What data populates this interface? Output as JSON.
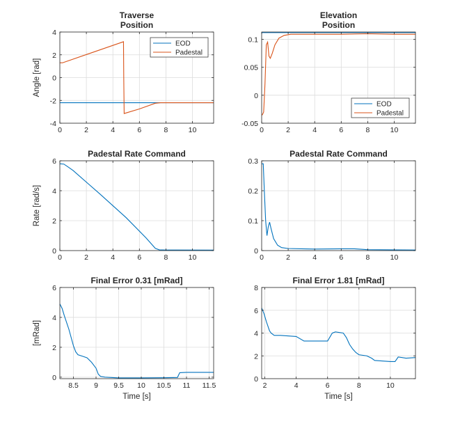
{
  "colors": {
    "eod": "#0072BD",
    "padestal": "#D95319"
  },
  "chart_data": [
    {
      "type": "line",
      "title": [
        "Traverse",
        "Position"
      ],
      "xlabel": "",
      "ylabel": "Angle [rad]",
      "xlim": [
        0,
        11.6
      ],
      "ylim": [
        -4,
        4
      ],
      "xticks": [
        0,
        2,
        4,
        6,
        8,
        10
      ],
      "xtick_labels": [
        "0",
        "2",
        "4",
        "6",
        "8",
        "10"
      ],
      "yticks": [
        -4,
        -2,
        0,
        2,
        4
      ],
      "ytick_labels": [
        "-4",
        "-2",
        "0",
        "2",
        "4"
      ],
      "grid": true,
      "legend": "top-right",
      "series": [
        {
          "name": "EOD",
          "color": "#0072BD",
          "x": [
            0,
            11.6
          ],
          "y": [
            -2.2,
            -2.2
          ]
        },
        {
          "name": "Padestal",
          "color": "#D95319",
          "x": [
            0,
            0.2,
            4.8,
            4.82,
            4.85,
            6.0,
            7.2,
            7.6,
            11.6
          ],
          "y": [
            1.3,
            1.3,
            3.15,
            0,
            -3.15,
            -2.75,
            -2.25,
            -2.2,
            -2.2
          ]
        }
      ]
    },
    {
      "type": "line",
      "title": [
        "Elevation",
        "Position"
      ],
      "xlabel": "",
      "ylabel": "",
      "xlim": [
        0,
        11.6
      ],
      "ylim": [
        -0.05,
        0.113
      ],
      "xticks": [
        0,
        2,
        4,
        6,
        8,
        10
      ],
      "xtick_labels": [
        "0",
        "2",
        "4",
        "6",
        "8",
        "10"
      ],
      "yticks": [
        -0.05,
        0,
        0.05,
        0.1
      ],
      "ytick_labels": [
        "-0.05",
        "0",
        "0.05",
        "0.1"
      ],
      "grid": true,
      "legend": "bottom-right",
      "series": [
        {
          "name": "EOD",
          "color": "#0072BD",
          "x": [
            0,
            11.6
          ],
          "y": [
            0.112,
            0.112
          ]
        },
        {
          "name": "Padestal",
          "color": "#D95319",
          "x": [
            0,
            0.05,
            0.15,
            0.25,
            0.35,
            0.45,
            0.55,
            0.65,
            0.8,
            1.0,
            1.3,
            1.7,
            2.2,
            3.0,
            4.0,
            6.0,
            8.0,
            10.0,
            11.6
          ],
          "y": [
            -0.035,
            -0.035,
            -0.03,
            0.02,
            0.09,
            0.095,
            0.07,
            0.066,
            0.075,
            0.09,
            0.102,
            0.107,
            0.109,
            0.109,
            0.109,
            0.109,
            0.11,
            0.109,
            0.109
          ]
        }
      ]
    },
    {
      "type": "line",
      "title": [
        "Padestal Rate Command"
      ],
      "xlabel": "",
      "ylabel": "Rate [rad/s]",
      "xlim": [
        0,
        11.6
      ],
      "ylim": [
        0,
        6
      ],
      "xticks": [
        0,
        2,
        4,
        6,
        8,
        10
      ],
      "xtick_labels": [
        "0",
        "2",
        "4",
        "6",
        "8",
        "10"
      ],
      "yticks": [
        0,
        2,
        4,
        6
      ],
      "ytick_labels": [
        "0",
        "2",
        "4",
        "6"
      ],
      "grid": true,
      "series": [
        {
          "color": "#0072BD",
          "x": [
            0,
            0.3,
            0.6,
            1.0,
            3.0,
            5.0,
            6.5,
            7.2,
            7.5,
            8.0,
            11.6
          ],
          "y": [
            5.8,
            5.78,
            5.6,
            5.35,
            3.8,
            2.2,
            0.85,
            0.15,
            0.05,
            0.04,
            0.03
          ]
        }
      ]
    },
    {
      "type": "line",
      "title": [
        "Padestal Rate Command"
      ],
      "xlabel": "",
      "ylabel": "",
      "xlim": [
        0,
        11.6
      ],
      "ylim": [
        0,
        0.3
      ],
      "xticks": [
        0,
        2,
        4,
        6,
        8,
        10
      ],
      "xtick_labels": [
        "0",
        "2",
        "4",
        "6",
        "8",
        "10"
      ],
      "yticks": [
        0,
        0.1,
        0.2,
        0.3
      ],
      "ytick_labels": [
        "0",
        "0.1",
        "0.2",
        "0.3"
      ],
      "grid": true,
      "series": [
        {
          "color": "#0072BD",
          "x": [
            0,
            0.12,
            0.2,
            0.3,
            0.4,
            0.5,
            0.6,
            0.7,
            0.9,
            1.2,
            1.5,
            2.0,
            3.0,
            4.0,
            6.0,
            7.0,
            8.0,
            11.6
          ],
          "y": [
            0.29,
            0.29,
            0.2,
            0.1,
            0.05,
            0.08,
            0.095,
            0.075,
            0.04,
            0.018,
            0.01,
            0.007,
            0.006,
            0.005,
            0.006,
            0.006,
            0.003,
            0.002
          ]
        }
      ]
    },
    {
      "type": "line",
      "title": [
        "Final Error 0.31 [mRad]"
      ],
      "xlabel": "Time [s]",
      "ylabel": "[mRad]",
      "xlim": [
        8.2,
        11.6
      ],
      "ylim": [
        -0.1,
        6
      ],
      "xticks": [
        8.5,
        9,
        9.5,
        10,
        10.5,
        11,
        11.5
      ],
      "xtick_labels": [
        "8.5",
        "9",
        "9.5",
        "10",
        "10.5",
        "11",
        "11.5"
      ],
      "yticks": [
        0,
        2,
        4,
        6
      ],
      "ytick_labels": [
        "0",
        "2",
        "4",
        "6"
      ],
      "grid": true,
      "series": [
        {
          "color": "#0072BD",
          "x": [
            8.2,
            8.25,
            8.3,
            8.4,
            8.5,
            8.55,
            8.6,
            8.7,
            8.8,
            8.9,
            8.95,
            9.0,
            9.05,
            9.1,
            9.2,
            9.5,
            10.0,
            10.5,
            10.8,
            10.85,
            11.0,
            11.6
          ],
          "y": [
            4.9,
            4.6,
            4.1,
            3.2,
            2.1,
            1.7,
            1.5,
            1.4,
            1.3,
            1.0,
            0.8,
            0.6,
            0.2,
            0.05,
            0.0,
            -0.05,
            -0.05,
            -0.04,
            -0.02,
            0.3,
            0.32,
            0.32
          ]
        }
      ]
    },
    {
      "type": "line",
      "title": [
        "Final Error 1.81 [mRad]"
      ],
      "xlabel": "Time [s]",
      "ylabel": "",
      "xlim": [
        1.8,
        11.6
      ],
      "ylim": [
        0,
        8
      ],
      "xticks": [
        2,
        4,
        6,
        8,
        10
      ],
      "xtick_labels": [
        "2",
        "4",
        "6",
        "8",
        "10"
      ],
      "yticks": [
        0,
        2,
        4,
        6,
        8
      ],
      "ytick_labels": [
        "0",
        "2",
        "4",
        "6",
        "8"
      ],
      "grid": true,
      "series": [
        {
          "color": "#0072BD",
          "x": [
            1.8,
            1.95,
            2.1,
            2.3,
            2.4,
            2.6,
            3.0,
            4.0,
            4.5,
            5.0,
            5.5,
            6.0,
            6.3,
            6.5,
            7.0,
            7.2,
            7.4,
            7.6,
            7.8,
            8.0,
            8.5,
            8.8,
            9.0,
            10.0,
            10.3,
            10.5,
            11.0,
            11.6
          ],
          "y": [
            6.2,
            5.7,
            5.0,
            4.2,
            4.0,
            3.8,
            3.8,
            3.7,
            3.3,
            3.3,
            3.3,
            3.3,
            4.0,
            4.1,
            4.0,
            3.6,
            3.0,
            2.6,
            2.3,
            2.1,
            2.0,
            1.8,
            1.6,
            1.5,
            1.5,
            1.9,
            1.8,
            1.85
          ]
        }
      ]
    }
  ]
}
